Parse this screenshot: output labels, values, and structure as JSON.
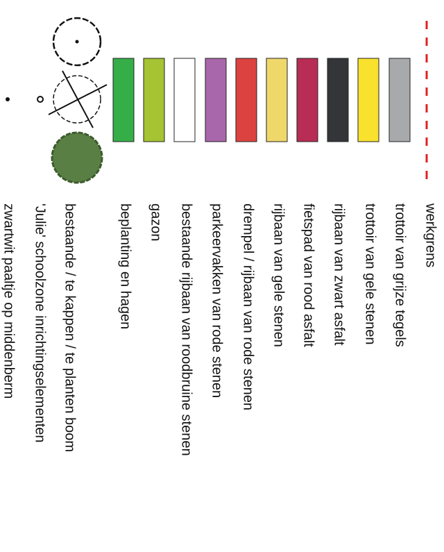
{
  "legend": {
    "items": [
      {
        "label": "werkgrens"
      },
      {
        "label": "trottoir van grijze tegels"
      },
      {
        "label": "trottoir van gele stenen"
      },
      {
        "label": "rijbaan van zwart asfalt"
      },
      {
        "label": "fietspad van rood asfalt"
      },
      {
        "label": "rijbaan van gele stenen"
      },
      {
        "label": "drempel / rijbaan van rode stenen"
      },
      {
        "label": "parkeervakken van rode stenen"
      },
      {
        "label": "bestaande rijbaan van roodbruine stenen"
      },
      {
        "label": "gazon"
      },
      {
        "label": "beplanting en hagen"
      },
      {
        "label": "bestaande / te kappen / te planten boom"
      },
      {
        "label": "'Julie' schoolzone inrichtingselementen"
      },
      {
        "label": "zwartwit paaltje op middenberm"
      }
    ]
  }
}
